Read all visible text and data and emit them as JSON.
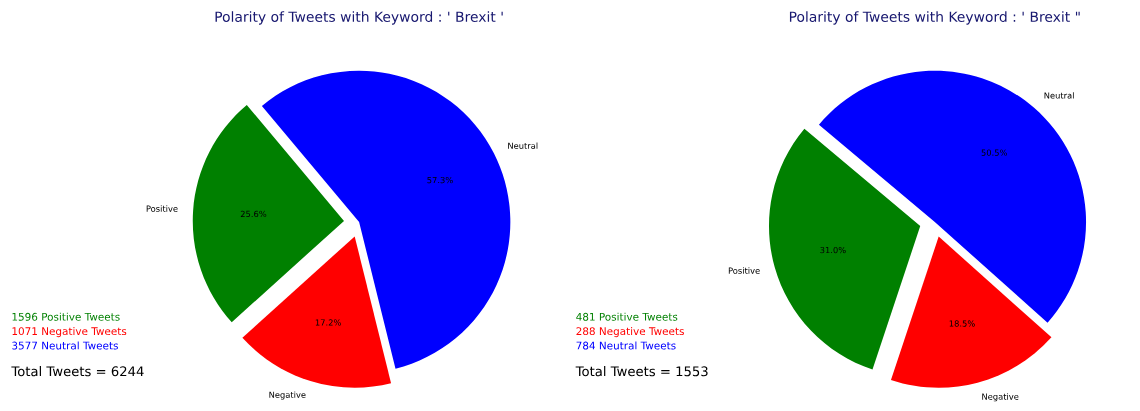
{
  "chart_data": [
    {
      "type": "pie",
      "title": "Polarity of Tweets with Keyword : ' Brexit '",
      "categories": [
        "Positive",
        "Negative",
        "Neutral"
      ],
      "values": [
        25.6,
        17.2,
        57.3
      ],
      "colors": [
        "#008000",
        "#ff0000",
        "#0000ff"
      ],
      "value_labels": [
        "25.6%",
        "17.2%",
        "57.3%"
      ],
      "annotations": [
        "1596 Positive Tweets",
        "1071 Negative Tweets",
        "3577 Neutral Tweets",
        "Total Tweets = 6244"
      ]
    },
    {
      "type": "pie",
      "title": "Polarity of Tweets with Keyword : ' Brexit \"",
      "categories": [
        "Positive",
        "Negative",
        "Neutral"
      ],
      "values": [
        31.0,
        18.5,
        50.5
      ],
      "colors": [
        "#008000",
        "#ff0000",
        "#0000ff"
      ],
      "value_labels": [
        "31.0%",
        "18.5%",
        "50.5%"
      ],
      "annotations": [
        "481 Positive Tweets",
        "288 Negative Tweets",
        "784 Neutral Tweets",
        "Total Tweets = 1553"
      ]
    }
  ]
}
